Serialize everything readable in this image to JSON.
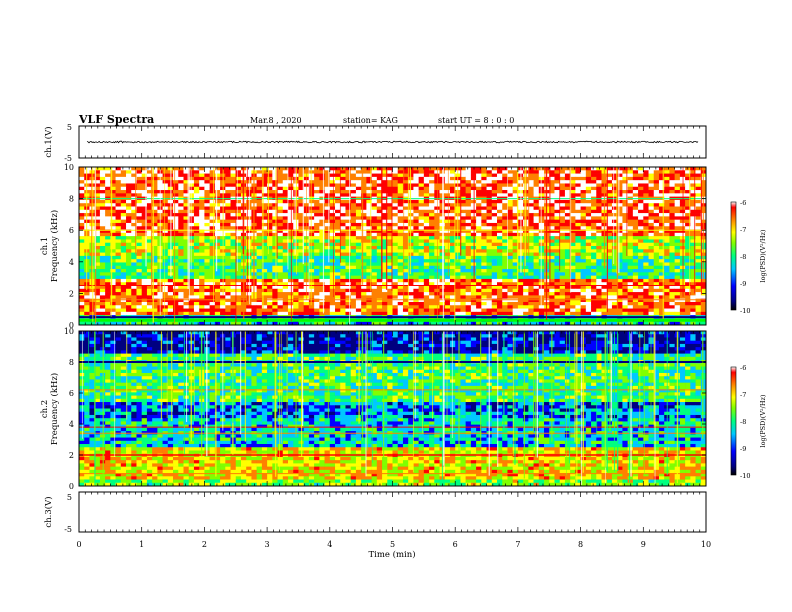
{
  "header": {
    "title": "VLF Spectra",
    "date": "Mar.8  , 2020",
    "station": "station= KAG",
    "start": "start  UT  =   8  : 0  : 0"
  },
  "chart_data": [
    {
      "type": "line",
      "panel": "ch1-waveform",
      "ylabel": "ch.1(V)",
      "ylim": [
        -5,
        5
      ],
      "yticks": [
        "5",
        "-5"
      ],
      "xlim": [
        0,
        10
      ],
      "series": [
        {
          "values_description_level": 0
        }
      ]
    },
    {
      "type": "heatmap",
      "panel": "ch1-spectrogram",
      "ylabel_top": "ch.1",
      "ylabel": "Frequency  (kHz)",
      "ylim": [
        0,
        10
      ],
      "yticks": [
        "0",
        "2",
        "4",
        "6",
        "8",
        "10"
      ],
      "xlim": [
        0,
        10
      ],
      "colorbar": {
        "label": "log(PSD)(V²/Hz)",
        "range": [
          -10,
          -6
        ],
        "ticks": [
          "-6",
          "-7",
          "-8",
          "-9",
          "-10"
        ]
      }
    },
    {
      "type": "heatmap",
      "panel": "ch2-spectrogram",
      "ylabel_top": "ch.2",
      "ylabel": "Frequency  (kHz)",
      "ylim": [
        0,
        10
      ],
      "yticks": [
        "0",
        "2",
        "4",
        "6",
        "8",
        "10"
      ],
      "xlim": [
        0,
        10
      ],
      "colorbar": {
        "label": "log(PSD)(V²/Hz)",
        "range": [
          -10,
          -6
        ],
        "ticks": [
          "-6",
          "-7",
          "-8",
          "-9",
          "-10"
        ]
      }
    },
    {
      "type": "line",
      "panel": "ch3-waveform",
      "ylabel": "ch.3(V)",
      "ylim": [
        -5,
        5
      ],
      "yticks": [
        "5",
        "-5"
      ],
      "xlim": [
        0,
        10
      ],
      "xlabel": "Time  (min)",
      "xticks": [
        "0",
        "1",
        "2",
        "3",
        "4",
        "5",
        "6",
        "7",
        "8",
        "9",
        "10"
      ]
    }
  ],
  "colors": {
    "palette": [
      "#000080",
      "#0000ff",
      "#00c8ff",
      "#00ff80",
      "#80ff00",
      "#ffff00",
      "#ff8000",
      "#ff0000",
      "#ffffff"
    ]
  }
}
